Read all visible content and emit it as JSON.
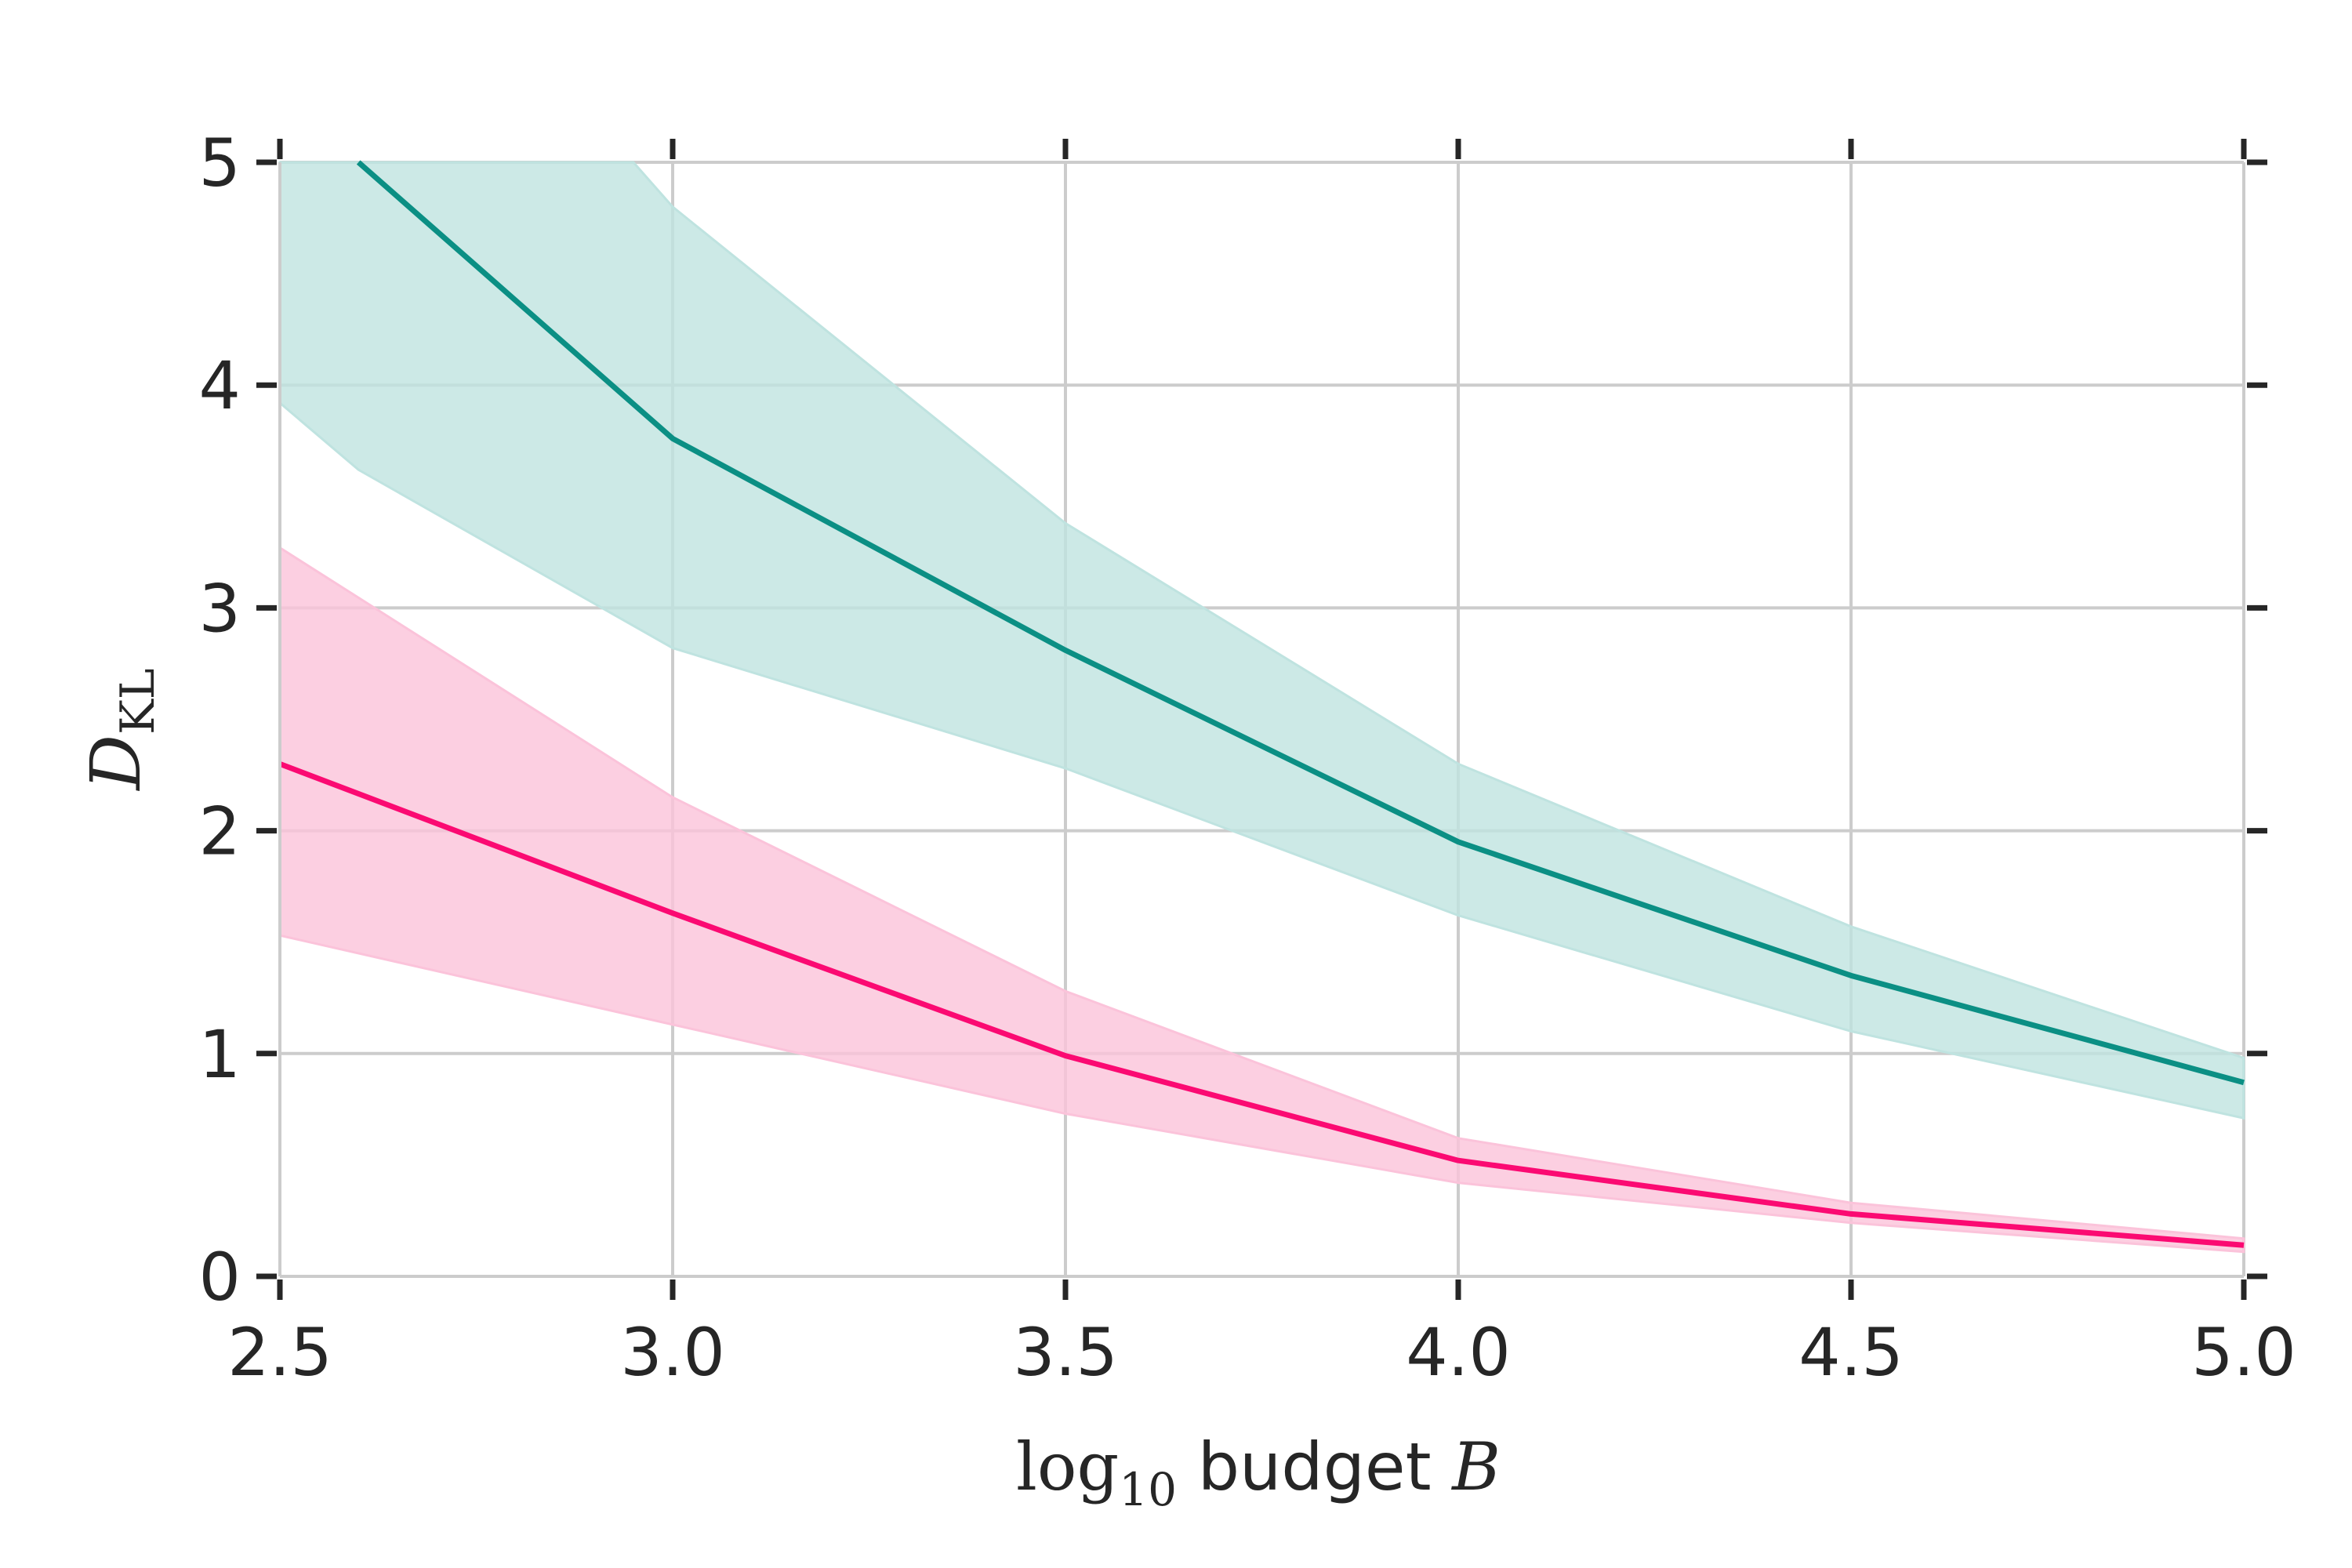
{
  "chart_data": {
    "type": "line",
    "xlabel": {
      "log_base_main": "log",
      "log_base_sub": "10",
      "text": " budget ",
      "var": "B"
    },
    "ylabel": {
      "main": "D",
      "sub": "KL"
    },
    "xlim": [
      2.5,
      5.0
    ],
    "ylim": [
      0,
      5
    ],
    "xticks": [
      "2.5",
      "3.0",
      "3.5",
      "4.0",
      "4.5",
      "5.0"
    ],
    "yticks": [
      "0",
      "1",
      "2",
      "3",
      "4",
      "5"
    ],
    "grid": true,
    "series": [
      {
        "color": "#0b8f84",
        "band_color": "#bfe3e0",
        "x": [
          2.5,
          2.6,
          3.0,
          3.5,
          4.0,
          4.5,
          5.0
        ],
        "y": [
          null,
          5.0,
          3.76,
          2.81,
          1.95,
          1.35,
          0.87
        ],
        "upper": [
          5.0,
          5.0,
          4.8,
          3.38,
          2.3,
          1.57,
          0.98
        ],
        "upper_x": [
          2.5,
          2.95,
          3.0,
          3.5,
          4.0,
          4.5,
          5.0
        ],
        "lower": [
          3.92,
          3.62,
          2.82,
          2.28,
          1.62,
          1.1,
          0.71
        ],
        "lower_x": [
          2.5,
          2.6,
          3.0,
          3.5,
          4.0,
          4.5,
          5.0
        ]
      },
      {
        "color": "#fb0a72",
        "band_color": "#fbc3da",
        "x": [
          2.5,
          3.0,
          3.5,
          4.0,
          4.5,
          5.0
        ],
        "y": [
          2.3,
          1.63,
          0.99,
          0.52,
          0.28,
          0.14
        ],
        "upper": [
          3.27,
          2.15,
          1.28,
          0.62,
          0.33,
          0.17
        ],
        "lower": [
          1.53,
          1.13,
          0.73,
          0.42,
          0.24,
          0.11
        ]
      }
    ]
  }
}
